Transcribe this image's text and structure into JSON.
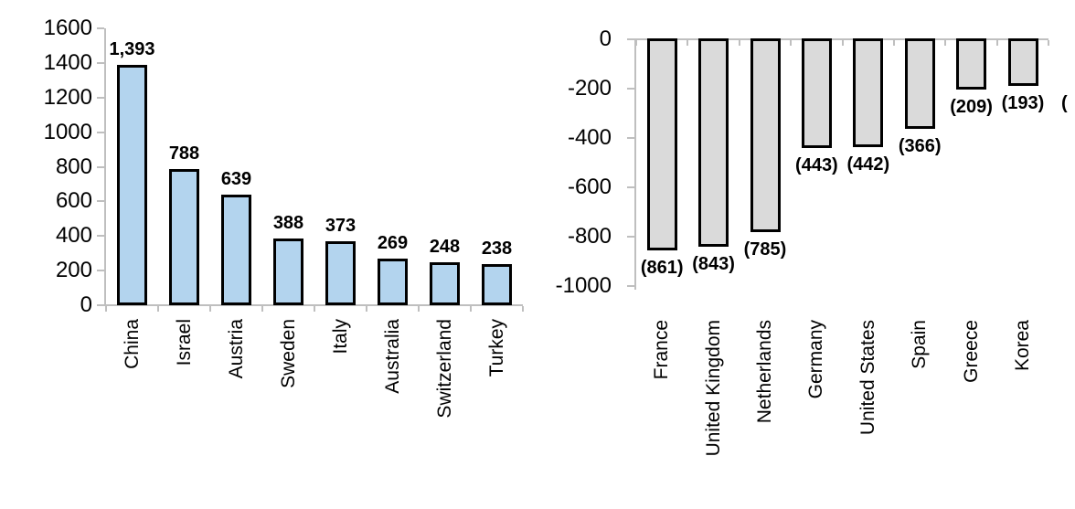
{
  "page": {
    "background_color": "#ffffff"
  },
  "chart_data": [
    {
      "type": "bar",
      "title": "",
      "xlabel": "",
      "ylabel": "",
      "categories": [
        "China",
        "Israel",
        "Austria",
        "Sweden",
        "Italy",
        "Australia",
        "Switzerland",
        "Turkey"
      ],
      "values": [
        1393,
        788,
        639,
        388,
        373,
        269,
        248,
        238
      ],
      "data_labels": [
        "1,393",
        "788",
        "639",
        "388",
        "373",
        "269",
        "248",
        "238"
      ],
      "ylim": [
        0,
        1600
      ],
      "ytick_step": 200,
      "ytick_labels": [
        "1600",
        "1400",
        "1200",
        "1000",
        "800",
        "600",
        "400",
        "200",
        "0"
      ],
      "grid": false,
      "legend": "none",
      "category_label_rotation_degrees": -90,
      "bar_fill_color": "#b3d4ee",
      "bar_border_color": "#000000",
      "axis_color": "#bfbfbf",
      "text_color": "#000000"
    },
    {
      "type": "bar",
      "title": "",
      "xlabel": "",
      "ylabel": "",
      "categories": [
        "France",
        "United Kingdom",
        "Netherlands",
        "Germany",
        "United States",
        "Spain",
        "Greece",
        "Korea"
      ],
      "values": [
        -861,
        -843,
        -785,
        -443,
        -442,
        -366,
        -209,
        -193
      ],
      "data_labels": [
        "(861)",
        "(843)",
        "(785)",
        "(443)",
        "(442)",
        "(366)",
        "(209)",
        "(193)"
      ],
      "ylim": [
        -1000,
        0
      ],
      "ytick_step": 200,
      "ytick_labels": [
        "0",
        "-200",
        "-400",
        "-600",
        "-800",
        "-1000"
      ],
      "grid": false,
      "legend": "none",
      "category_label_rotation_degrees": -90,
      "bar_fill_color": "#dadada",
      "bar_border_color": "#000000",
      "axis_color": "#bfbfbf",
      "text_color": "#000000",
      "clipped_right_label_fragment": "("
    }
  ]
}
